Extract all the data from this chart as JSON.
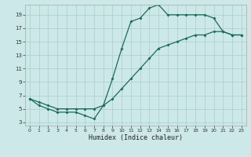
{
  "xlabel": "Humidex (Indice chaleur)",
  "upper_x": [
    0,
    1,
    2,
    3,
    4,
    5,
    6,
    7,
    8,
    9,
    10,
    11,
    12,
    13,
    14,
    15,
    16,
    17,
    18,
    19,
    20,
    21,
    22,
    23
  ],
  "upper_y": [
    6.5,
    5.5,
    5.0,
    4.5,
    4.5,
    4.5,
    4.0,
    3.5,
    5.5,
    9.5,
    14.0,
    18.0,
    18.5,
    20.0,
    20.5,
    19.0,
    19.0,
    19.0,
    19.0,
    19.0,
    18.5,
    16.5,
    16.0,
    16.0
  ],
  "lower_x": [
    0,
    1,
    2,
    3,
    4,
    5,
    6,
    7,
    8,
    9,
    10,
    11,
    12,
    13,
    14,
    15,
    16,
    17,
    18,
    19,
    20,
    21,
    22,
    23
  ],
  "lower_y": [
    6.5,
    6.0,
    5.5,
    5.0,
    5.0,
    5.0,
    5.0,
    5.0,
    5.5,
    6.5,
    8.0,
    9.5,
    11.0,
    12.5,
    14.0,
    14.5,
    15.0,
    15.5,
    16.0,
    16.0,
    16.5,
    16.5,
    16.0,
    16.0
  ],
  "line_color": "#1a6b5a",
  "bg_color": "#cce8e8",
  "grid_color": "#aacece",
  "xlim": [
    -0.5,
    23.5
  ],
  "ylim": [
    2.5,
    20.5
  ],
  "xticks": [
    0,
    1,
    2,
    3,
    4,
    5,
    6,
    7,
    8,
    9,
    10,
    11,
    12,
    13,
    14,
    15,
    16,
    17,
    18,
    19,
    20,
    21,
    22,
    23
  ],
  "yticks": [
    3,
    5,
    7,
    9,
    11,
    13,
    15,
    17,
    19
  ]
}
